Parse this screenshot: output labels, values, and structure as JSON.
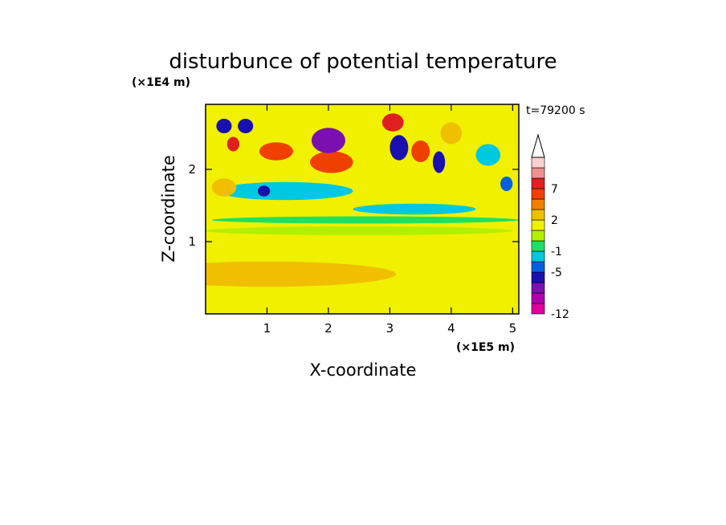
{
  "chart_data": {
    "type": "heatmap",
    "title": "disturbunce of potential temperature",
    "xlabel": "X-coordinate",
    "ylabel": "Z-coordinate",
    "x_unit": "(×1E5 m)",
    "y_unit": "(×1E4 m)",
    "time_label": "t=79200 s",
    "xlim": [
      0,
      5.1
    ],
    "ylim": [
      0,
      2.9
    ],
    "x_ticks": [
      1,
      2,
      3,
      4,
      5
    ],
    "y_ticks": [
      1,
      2
    ],
    "colorbar": {
      "levels": [
        -12,
        -11,
        -9,
        -7,
        -5,
        -3,
        -1,
        0,
        1,
        2,
        3,
        5,
        7,
        9,
        11
      ],
      "colors": [
        "#e000a0",
        "#b000b0",
        "#7a10b0",
        "#1a10b0",
        "#0060e0",
        "#00c8e0",
        "#20e060",
        "#b0f000",
        "#f0f000",
        "#f0c000",
        "#f08000",
        "#f04000",
        "#e02020",
        "#f09090",
        "#ffd0d0"
      ],
      "tick_labels": [
        "-12",
        "-5",
        "-1",
        "2",
        "7"
      ],
      "tick_values": [
        -12,
        -5,
        -1,
        2,
        7
      ],
      "extend": "max"
    },
    "regions": [
      {
        "x": 1.0,
        "z": 0.55,
        "w": 4.2,
        "h": 0.35,
        "value": 2.5
      },
      {
        "x": 2.5,
        "z": 0.2,
        "w": 5.0,
        "h": 0.12,
        "value": 1.5
      },
      {
        "x": 2.5,
        "z": 1.15,
        "w": 5.0,
        "h": 0.12,
        "value": 0.5
      },
      {
        "x": 2.6,
        "z": 1.3,
        "w": 5.0,
        "h": 0.1,
        "value": -0.5
      },
      {
        "x": 3.4,
        "z": 1.45,
        "w": 2.0,
        "h": 0.15,
        "value": -2
      },
      {
        "x": 1.3,
        "z": 1.7,
        "w": 2.2,
        "h": 0.25,
        "value": -1.5
      },
      {
        "x": 0.3,
        "z": 1.75,
        "w": 0.4,
        "h": 0.25,
        "value": 2.5
      },
      {
        "x": 2.05,
        "z": 2.1,
        "w": 0.7,
        "h": 0.3,
        "value": 6
      },
      {
        "x": 1.15,
        "z": 2.25,
        "w": 0.55,
        "h": 0.25,
        "value": 6
      },
      {
        "x": 2.0,
        "z": 2.4,
        "w": 0.55,
        "h": 0.35,
        "value": -9
      },
      {
        "x": 0.65,
        "z": 2.6,
        "w": 0.25,
        "h": 0.2,
        "value": -6
      },
      {
        "x": 0.45,
        "z": 2.35,
        "w": 0.2,
        "h": 0.2,
        "value": 7
      },
      {
        "x": 0.3,
        "z": 2.6,
        "w": 0.25,
        "h": 0.2,
        "value": -6
      },
      {
        "x": 3.15,
        "z": 2.3,
        "w": 0.3,
        "h": 0.35,
        "value": -7
      },
      {
        "x": 3.5,
        "z": 2.25,
        "w": 0.3,
        "h": 0.3,
        "value": 6
      },
      {
        "x": 3.05,
        "z": 2.65,
        "w": 0.35,
        "h": 0.25,
        "value": 7
      },
      {
        "x": 3.8,
        "z": 2.1,
        "w": 0.2,
        "h": 0.3,
        "value": -7
      },
      {
        "x": 4.0,
        "z": 2.5,
        "w": 0.35,
        "h": 0.3,
        "value": 2
      },
      {
        "x": 4.6,
        "z": 2.2,
        "w": 0.4,
        "h": 0.3,
        "value": -2
      },
      {
        "x": 0.95,
        "z": 1.7,
        "w": 0.2,
        "h": 0.15,
        "value": -7
      },
      {
        "x": 4.9,
        "z": 1.8,
        "w": 0.2,
        "h": 0.2,
        "value": -5
      }
    ]
  }
}
